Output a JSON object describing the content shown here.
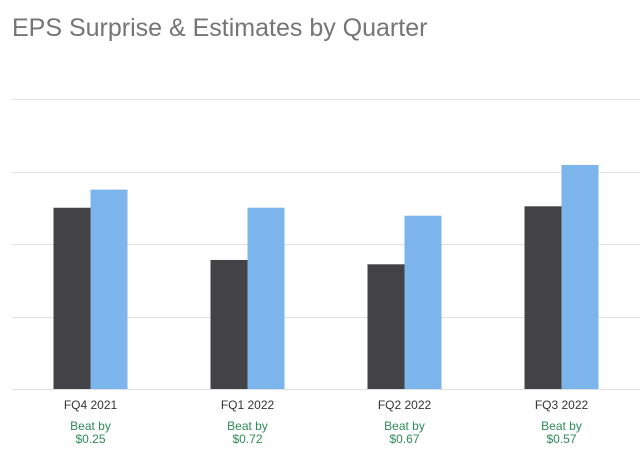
{
  "chart_data": {
    "type": "bar",
    "title": "EPS Surprise & Estimates by Quarter",
    "categories": [
      "FQ4 2021",
      "FQ1 2022",
      "FQ2 2022",
      "FQ3 2022"
    ],
    "series": [
      {
        "values": [
          2.5,
          1.78,
          1.72,
          2.52
        ]
      },
      {
        "values": [
          2.75,
          2.5,
          2.39,
          3.09
        ]
      }
    ],
    "annotations": [
      {
        "label": "Beat by",
        "value": "$0.25"
      },
      {
        "label": "Beat by",
        "value": "$0.72"
      },
      {
        "label": "Beat by",
        "value": "$0.67"
      },
      {
        "label": "Beat by",
        "value": "$0.57"
      }
    ],
    "ylim": [
      0,
      4
    ],
    "grid": true,
    "colors": {
      "estimate": "#434246",
      "actual": "#7cb5ec",
      "beat": "#2e8b57",
      "grid": "#e0e0e0"
    }
  }
}
